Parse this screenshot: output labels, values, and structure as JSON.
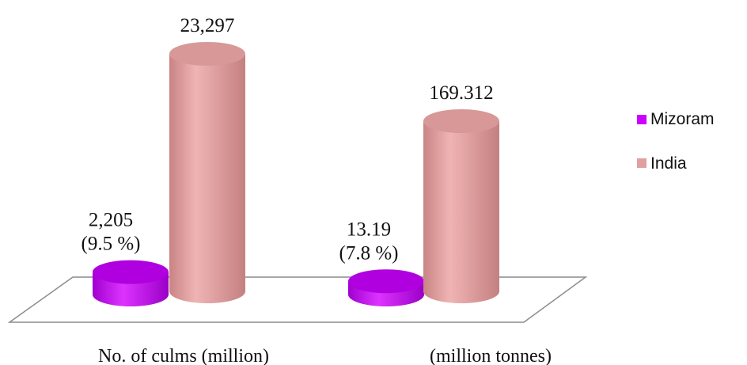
{
  "chart_data": {
    "type": "bar",
    "style": "3d-cylinder",
    "categories": [
      "No. of culms (million)",
      "(million tonnes)"
    ],
    "series": [
      {
        "name": "Mizoram",
        "color": "#CC00FF",
        "top_color": "#B000E0",
        "values": [
          2205,
          13.19
        ],
        "data_labels": [
          [
            "2,205",
            "(9.5 %)"
          ],
          [
            "13.19",
            "(7.8 %)"
          ]
        ]
      },
      {
        "name": "India",
        "color": "#E0A0A0",
        "top_color": "#D89898",
        "values": [
          23297,
          169.312
        ],
        "data_labels": [
          [
            "23,297"
          ],
          [
            "169.312"
          ]
        ]
      }
    ],
    "grid": false,
    "legend_position": "right"
  }
}
